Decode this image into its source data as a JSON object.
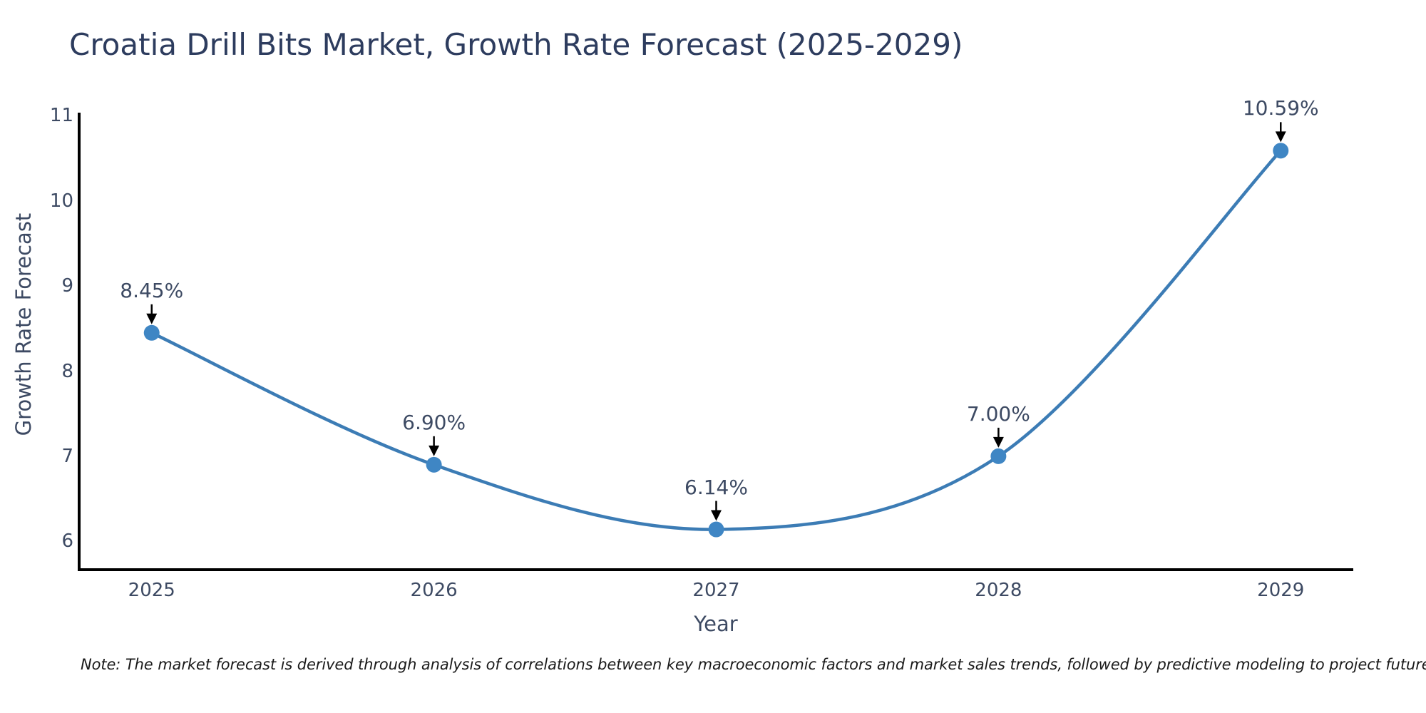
{
  "page": {
    "background": "#ffffff"
  },
  "chart_data": {
    "type": "line",
    "title": "Croatia Drill Bits Market, Growth Rate Forecast (2025-2029)",
    "xlabel": "Year",
    "ylabel": "Growth Rate Forecast",
    "x": [
      2025,
      2026,
      2027,
      2028,
      2029
    ],
    "y": [
      8.45,
      6.9,
      6.14,
      7.0,
      10.59
    ],
    "point_labels": [
      "8.45%",
      "6.90%",
      "6.14%",
      "7.00%",
      "10.59%"
    ],
    "xtick_labels": [
      "2025",
      "2026",
      "2027",
      "2028",
      "2029"
    ],
    "xtick_values": [
      2025,
      2026,
      2027,
      2028,
      2029
    ],
    "ytick_labels": [
      "6",
      "7",
      "8",
      "9",
      "10",
      "11"
    ],
    "ytick_values": [
      6,
      7,
      8,
      9,
      10,
      11
    ],
    "xlim": [
      2024.743,
      2029.257
    ],
    "ylim": [
      5.667,
      11.02
    ],
    "grid": false,
    "legend_position": "none",
    "line_color": "#3c7cb5",
    "marker_color": "#3f86c4",
    "annotation_arrow_color": "#000000",
    "axis_color": "#000000",
    "tick_text_color": "#3d4a63",
    "title_color": "#2d3c5e",
    "note": "Note: The market forecast is derived through analysis of correlations between key macroeconomic factors and market sales trends, followed by predictive modeling to project future sales"
  }
}
